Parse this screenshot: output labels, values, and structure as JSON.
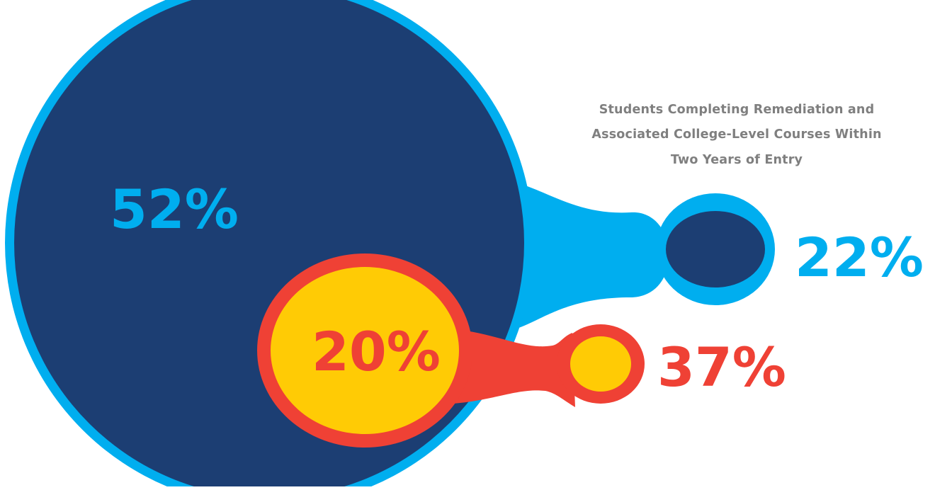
{
  "chart_data": {
    "type": "bubble",
    "title_lines": [
      "Students Completing Remediation and",
      "Associated College-Level Courses Within",
      "Two Years of Entry"
    ],
    "groups": [
      {
        "key": "blue",
        "large_value_label": "52%",
        "small_value_label": "22%",
        "large_value": 52,
        "small_value": 22
      },
      {
        "key": "red",
        "large_value_label": "20%",
        "small_value_label": "37%",
        "large_value": 20,
        "small_value": 37
      }
    ],
    "legend": "none",
    "grid": false
  },
  "colors": {
    "outer_ring": "#00aeef",
    "outer_fill": "#1c3e73",
    "inner_ring": "#ef4135",
    "inner_fill": "#ffcb05",
    "caption": "#7f7f7f",
    "blue_text": "#00aeef",
    "red_text": "#ef4135"
  }
}
